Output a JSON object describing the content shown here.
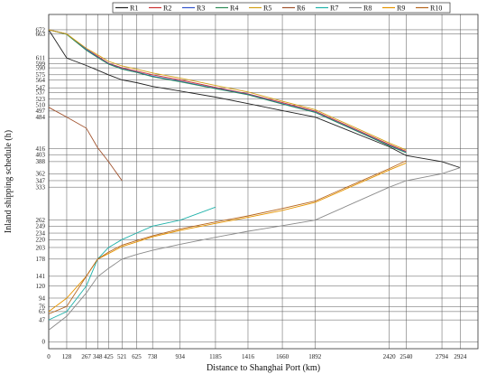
{
  "chart_data": {
    "type": "line",
    "xlabel": "Distance to Shanghai Port (km)",
    "ylabel": "Inland shipping schedule (h)",
    "xlim": [
      0,
      3050
    ],
    "ylim": [
      -15,
      705
    ],
    "x_ticks": [
      0,
      128,
      267,
      348,
      425,
      521,
      625,
      738,
      934,
      1185,
      1416,
      1660,
      1892,
      2420,
      2540,
      2794,
      2924
    ],
    "y_ticks": [
      0,
      47,
      65,
      76,
      94,
      120,
      141,
      178,
      203,
      220,
      234,
      249,
      262,
      333,
      347,
      362,
      388,
      403,
      416,
      484,
      497,
      510,
      523,
      537,
      547,
      564,
      575,
      590,
      599,
      611,
      663,
      672
    ],
    "grid": true,
    "legend": "top",
    "series": [
      {
        "name": "R1",
        "color": "#222222",
        "x": [
          0,
          128,
          267,
          348,
          425,
          521,
          625,
          738,
          934,
          1185,
          1416,
          1660,
          1892,
          2420,
          2540,
          2794,
          2924
        ],
        "y": [
          672,
          611,
          595,
          585,
          575,
          564,
          558,
          550,
          540,
          527,
          513,
          498,
          484,
          420,
          401,
          388,
          375
        ]
      },
      {
        "name": "R2",
        "color": "#cc3333",
        "x": [
          0,
          128,
          267,
          348,
          425,
          521,
          625,
          738,
          934,
          1185,
          1416,
          1660,
          1892,
          2420,
          2540
        ],
        "y": [
          672,
          663,
          630,
          615,
          600,
          590,
          583,
          575,
          564,
          548,
          534,
          515,
          497,
          425,
          410
        ]
      },
      {
        "name": "R3",
        "color": "#3355cc",
        "x": [
          0,
          128,
          267,
          348,
          425,
          521,
          625,
          738,
          934,
          1185,
          1416,
          1660,
          1892,
          2420,
          2540
        ],
        "y": [
          672,
          663,
          630,
          613,
          599,
          588,
          581,
          572,
          561,
          546,
          533,
          513,
          495,
          423,
          408
        ]
      },
      {
        "name": "R4",
        "color": "#2e8b57",
        "x": [
          0,
          128,
          267,
          348,
          425,
          521,
          625,
          738,
          934,
          1185,
          1416,
          1660,
          1892,
          2420,
          2540
        ],
        "y": [
          672,
          662,
          628,
          612,
          598,
          587,
          580,
          571,
          560,
          545,
          532,
          512,
          494,
          422,
          407
        ]
      },
      {
        "name": "R5",
        "color": "#d4a017",
        "x": [
          0,
          128,
          267,
          348,
          425,
          521,
          625,
          738,
          934,
          1185,
          1416,
          1660,
          1892,
          2420,
          2540
        ],
        "y": [
          672,
          663,
          632,
          618,
          604,
          594,
          587,
          579,
          568,
          552,
          538,
          518,
          500,
          428,
          413
        ]
      },
      {
        "name": "R6",
        "color": "#a0522d",
        "x": [
          0,
          128,
          267,
          348,
          425,
          521
        ],
        "y": [
          505,
          484,
          460,
          418,
          388,
          347
        ]
      },
      {
        "name": "R7",
        "color": "#20b2aa",
        "x": [
          0,
          128,
          267,
          348,
          425,
          521,
          625,
          738,
          934,
          1185
        ],
        "y": [
          47,
          65,
          120,
          178,
          203,
          220,
          234,
          249,
          262,
          290
        ]
      },
      {
        "name": "R8",
        "color": "#8a8a8a",
        "x": [
          0,
          128,
          267,
          348,
          425,
          521,
          625,
          738,
          934,
          1185,
          1416,
          1660,
          1892,
          2420,
          2540,
          2794,
          2924
        ],
        "y": [
          25,
          55,
          105,
          140,
          158,
          178,
          188,
          197,
          210,
          225,
          238,
          250,
          262,
          333,
          347,
          362,
          375
        ]
      },
      {
        "name": "R9",
        "color": "#e69500",
        "x": [
          0,
          128,
          267,
          348,
          425,
          521,
          625,
          738,
          934,
          1185,
          1416,
          1660,
          1892,
          2420,
          2540
        ],
        "y": [
          65,
          94,
          141,
          178,
          190,
          205,
          215,
          226,
          240,
          255,
          268,
          283,
          300,
          370,
          385
        ]
      },
      {
        "name": "R10",
        "color": "#b5651d",
        "x": [
          0,
          128,
          267,
          348,
          425,
          521,
          625,
          738,
          934,
          1185,
          1416,
          1660,
          1892,
          2420,
          2540
        ],
        "y": [
          60,
          76,
          141,
          178,
          193,
          208,
          218,
          228,
          243,
          258,
          271,
          287,
          303,
          373,
          390
        ]
      }
    ]
  }
}
